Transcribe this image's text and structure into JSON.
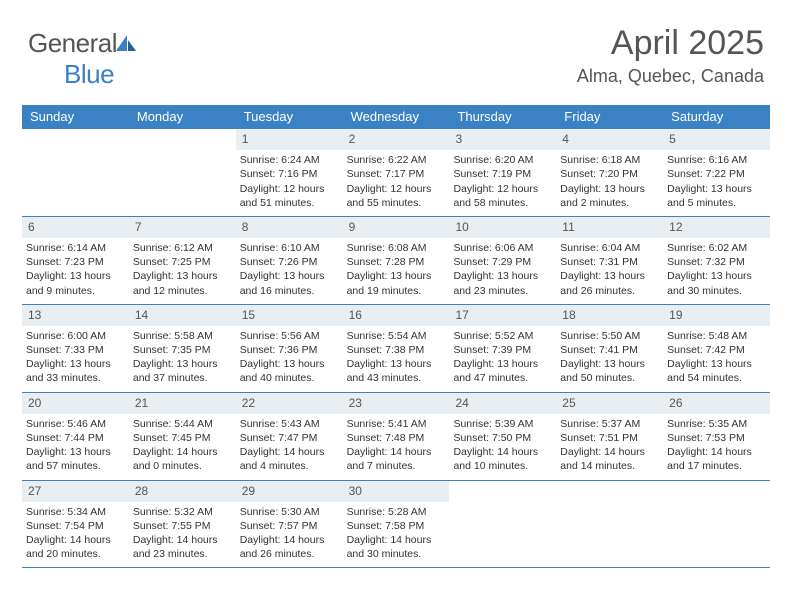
{
  "brand": {
    "part1": "General",
    "part2": "Blue"
  },
  "header": {
    "month_title": "April 2025",
    "location": "Alma, Quebec, Canada"
  },
  "colors": {
    "header_bar": "#3b82c4",
    "header_text": "#ffffff",
    "daynum_bg": "#e9eef2",
    "text": "#333333",
    "rule": "#3b82c4"
  },
  "weekdays": [
    "Sunday",
    "Monday",
    "Tuesday",
    "Wednesday",
    "Thursday",
    "Friday",
    "Saturday"
  ],
  "weeks": [
    [
      {
        "empty": true
      },
      {
        "empty": true
      },
      {
        "day": "1",
        "sunrise": "Sunrise: 6:24 AM",
        "sunset": "Sunset: 7:16 PM",
        "daylight": "Daylight: 12 hours and 51 minutes."
      },
      {
        "day": "2",
        "sunrise": "Sunrise: 6:22 AM",
        "sunset": "Sunset: 7:17 PM",
        "daylight": "Daylight: 12 hours and 55 minutes."
      },
      {
        "day": "3",
        "sunrise": "Sunrise: 6:20 AM",
        "sunset": "Sunset: 7:19 PM",
        "daylight": "Daylight: 12 hours and 58 minutes."
      },
      {
        "day": "4",
        "sunrise": "Sunrise: 6:18 AM",
        "sunset": "Sunset: 7:20 PM",
        "daylight": "Daylight: 13 hours and 2 minutes."
      },
      {
        "day": "5",
        "sunrise": "Sunrise: 6:16 AM",
        "sunset": "Sunset: 7:22 PM",
        "daylight": "Daylight: 13 hours and 5 minutes."
      }
    ],
    [
      {
        "day": "6",
        "sunrise": "Sunrise: 6:14 AM",
        "sunset": "Sunset: 7:23 PM",
        "daylight": "Daylight: 13 hours and 9 minutes."
      },
      {
        "day": "7",
        "sunrise": "Sunrise: 6:12 AM",
        "sunset": "Sunset: 7:25 PM",
        "daylight": "Daylight: 13 hours and 12 minutes."
      },
      {
        "day": "8",
        "sunrise": "Sunrise: 6:10 AM",
        "sunset": "Sunset: 7:26 PM",
        "daylight": "Daylight: 13 hours and 16 minutes."
      },
      {
        "day": "9",
        "sunrise": "Sunrise: 6:08 AM",
        "sunset": "Sunset: 7:28 PM",
        "daylight": "Daylight: 13 hours and 19 minutes."
      },
      {
        "day": "10",
        "sunrise": "Sunrise: 6:06 AM",
        "sunset": "Sunset: 7:29 PM",
        "daylight": "Daylight: 13 hours and 23 minutes."
      },
      {
        "day": "11",
        "sunrise": "Sunrise: 6:04 AM",
        "sunset": "Sunset: 7:31 PM",
        "daylight": "Daylight: 13 hours and 26 minutes."
      },
      {
        "day": "12",
        "sunrise": "Sunrise: 6:02 AM",
        "sunset": "Sunset: 7:32 PM",
        "daylight": "Daylight: 13 hours and 30 minutes."
      }
    ],
    [
      {
        "day": "13",
        "sunrise": "Sunrise: 6:00 AM",
        "sunset": "Sunset: 7:33 PM",
        "daylight": "Daylight: 13 hours and 33 minutes."
      },
      {
        "day": "14",
        "sunrise": "Sunrise: 5:58 AM",
        "sunset": "Sunset: 7:35 PM",
        "daylight": "Daylight: 13 hours and 37 minutes."
      },
      {
        "day": "15",
        "sunrise": "Sunrise: 5:56 AM",
        "sunset": "Sunset: 7:36 PM",
        "daylight": "Daylight: 13 hours and 40 minutes."
      },
      {
        "day": "16",
        "sunrise": "Sunrise: 5:54 AM",
        "sunset": "Sunset: 7:38 PM",
        "daylight": "Daylight: 13 hours and 43 minutes."
      },
      {
        "day": "17",
        "sunrise": "Sunrise: 5:52 AM",
        "sunset": "Sunset: 7:39 PM",
        "daylight": "Daylight: 13 hours and 47 minutes."
      },
      {
        "day": "18",
        "sunrise": "Sunrise: 5:50 AM",
        "sunset": "Sunset: 7:41 PM",
        "daylight": "Daylight: 13 hours and 50 minutes."
      },
      {
        "day": "19",
        "sunrise": "Sunrise: 5:48 AM",
        "sunset": "Sunset: 7:42 PM",
        "daylight": "Daylight: 13 hours and 54 minutes."
      }
    ],
    [
      {
        "day": "20",
        "sunrise": "Sunrise: 5:46 AM",
        "sunset": "Sunset: 7:44 PM",
        "daylight": "Daylight: 13 hours and 57 minutes."
      },
      {
        "day": "21",
        "sunrise": "Sunrise: 5:44 AM",
        "sunset": "Sunset: 7:45 PM",
        "daylight": "Daylight: 14 hours and 0 minutes."
      },
      {
        "day": "22",
        "sunrise": "Sunrise: 5:43 AM",
        "sunset": "Sunset: 7:47 PM",
        "daylight": "Daylight: 14 hours and 4 minutes."
      },
      {
        "day": "23",
        "sunrise": "Sunrise: 5:41 AM",
        "sunset": "Sunset: 7:48 PM",
        "daylight": "Daylight: 14 hours and 7 minutes."
      },
      {
        "day": "24",
        "sunrise": "Sunrise: 5:39 AM",
        "sunset": "Sunset: 7:50 PM",
        "daylight": "Daylight: 14 hours and 10 minutes."
      },
      {
        "day": "25",
        "sunrise": "Sunrise: 5:37 AM",
        "sunset": "Sunset: 7:51 PM",
        "daylight": "Daylight: 14 hours and 14 minutes."
      },
      {
        "day": "26",
        "sunrise": "Sunrise: 5:35 AM",
        "sunset": "Sunset: 7:53 PM",
        "daylight": "Daylight: 14 hours and 17 minutes."
      }
    ],
    [
      {
        "day": "27",
        "sunrise": "Sunrise: 5:34 AM",
        "sunset": "Sunset: 7:54 PM",
        "daylight": "Daylight: 14 hours and 20 minutes."
      },
      {
        "day": "28",
        "sunrise": "Sunrise: 5:32 AM",
        "sunset": "Sunset: 7:55 PM",
        "daylight": "Daylight: 14 hours and 23 minutes."
      },
      {
        "day": "29",
        "sunrise": "Sunrise: 5:30 AM",
        "sunset": "Sunset: 7:57 PM",
        "daylight": "Daylight: 14 hours and 26 minutes."
      },
      {
        "day": "30",
        "sunrise": "Sunrise: 5:28 AM",
        "sunset": "Sunset: 7:58 PM",
        "daylight": "Daylight: 14 hours and 30 minutes."
      },
      {
        "empty": true
      },
      {
        "empty": true
      },
      {
        "empty": true
      }
    ]
  ]
}
